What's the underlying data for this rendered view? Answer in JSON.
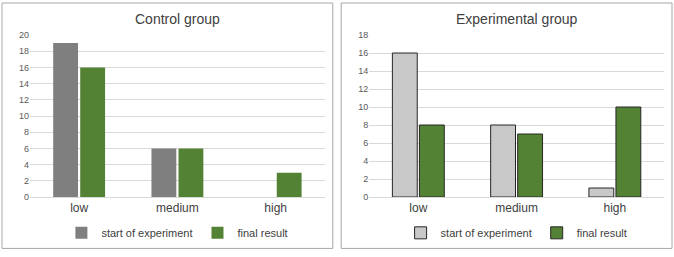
{
  "chart_data": [
    {
      "type": "bar",
      "title": "Control group",
      "categories": [
        "low",
        "medium",
        "high"
      ],
      "series": [
        {
          "name": "start of experiment",
          "color": "#7f7f7f",
          "values": [
            19,
            6,
            0
          ]
        },
        {
          "name": "final result",
          "color": "#548235",
          "values": [
            16,
            6,
            3
          ]
        }
      ],
      "ylim": [
        0,
        20
      ],
      "yticks": [
        0,
        2,
        4,
        6,
        8,
        10,
        12,
        14,
        16,
        18,
        20
      ],
      "grid": true,
      "legend": "bottom"
    },
    {
      "type": "bar",
      "title": "Experimental group",
      "categories": [
        "low",
        "medium",
        "high"
      ],
      "series": [
        {
          "name": "start of experiment",
          "color": "#c8c8c8",
          "values": [
            16,
            8,
            1
          ]
        },
        {
          "name": "final result",
          "color": "#548235",
          "values": [
            8,
            7,
            10
          ]
        }
      ],
      "ylim": [
        0,
        18
      ],
      "yticks": [
        0,
        2,
        4,
        6,
        8,
        10,
        12,
        14,
        16,
        18
      ],
      "grid": true,
      "legend": "bottom"
    }
  ]
}
